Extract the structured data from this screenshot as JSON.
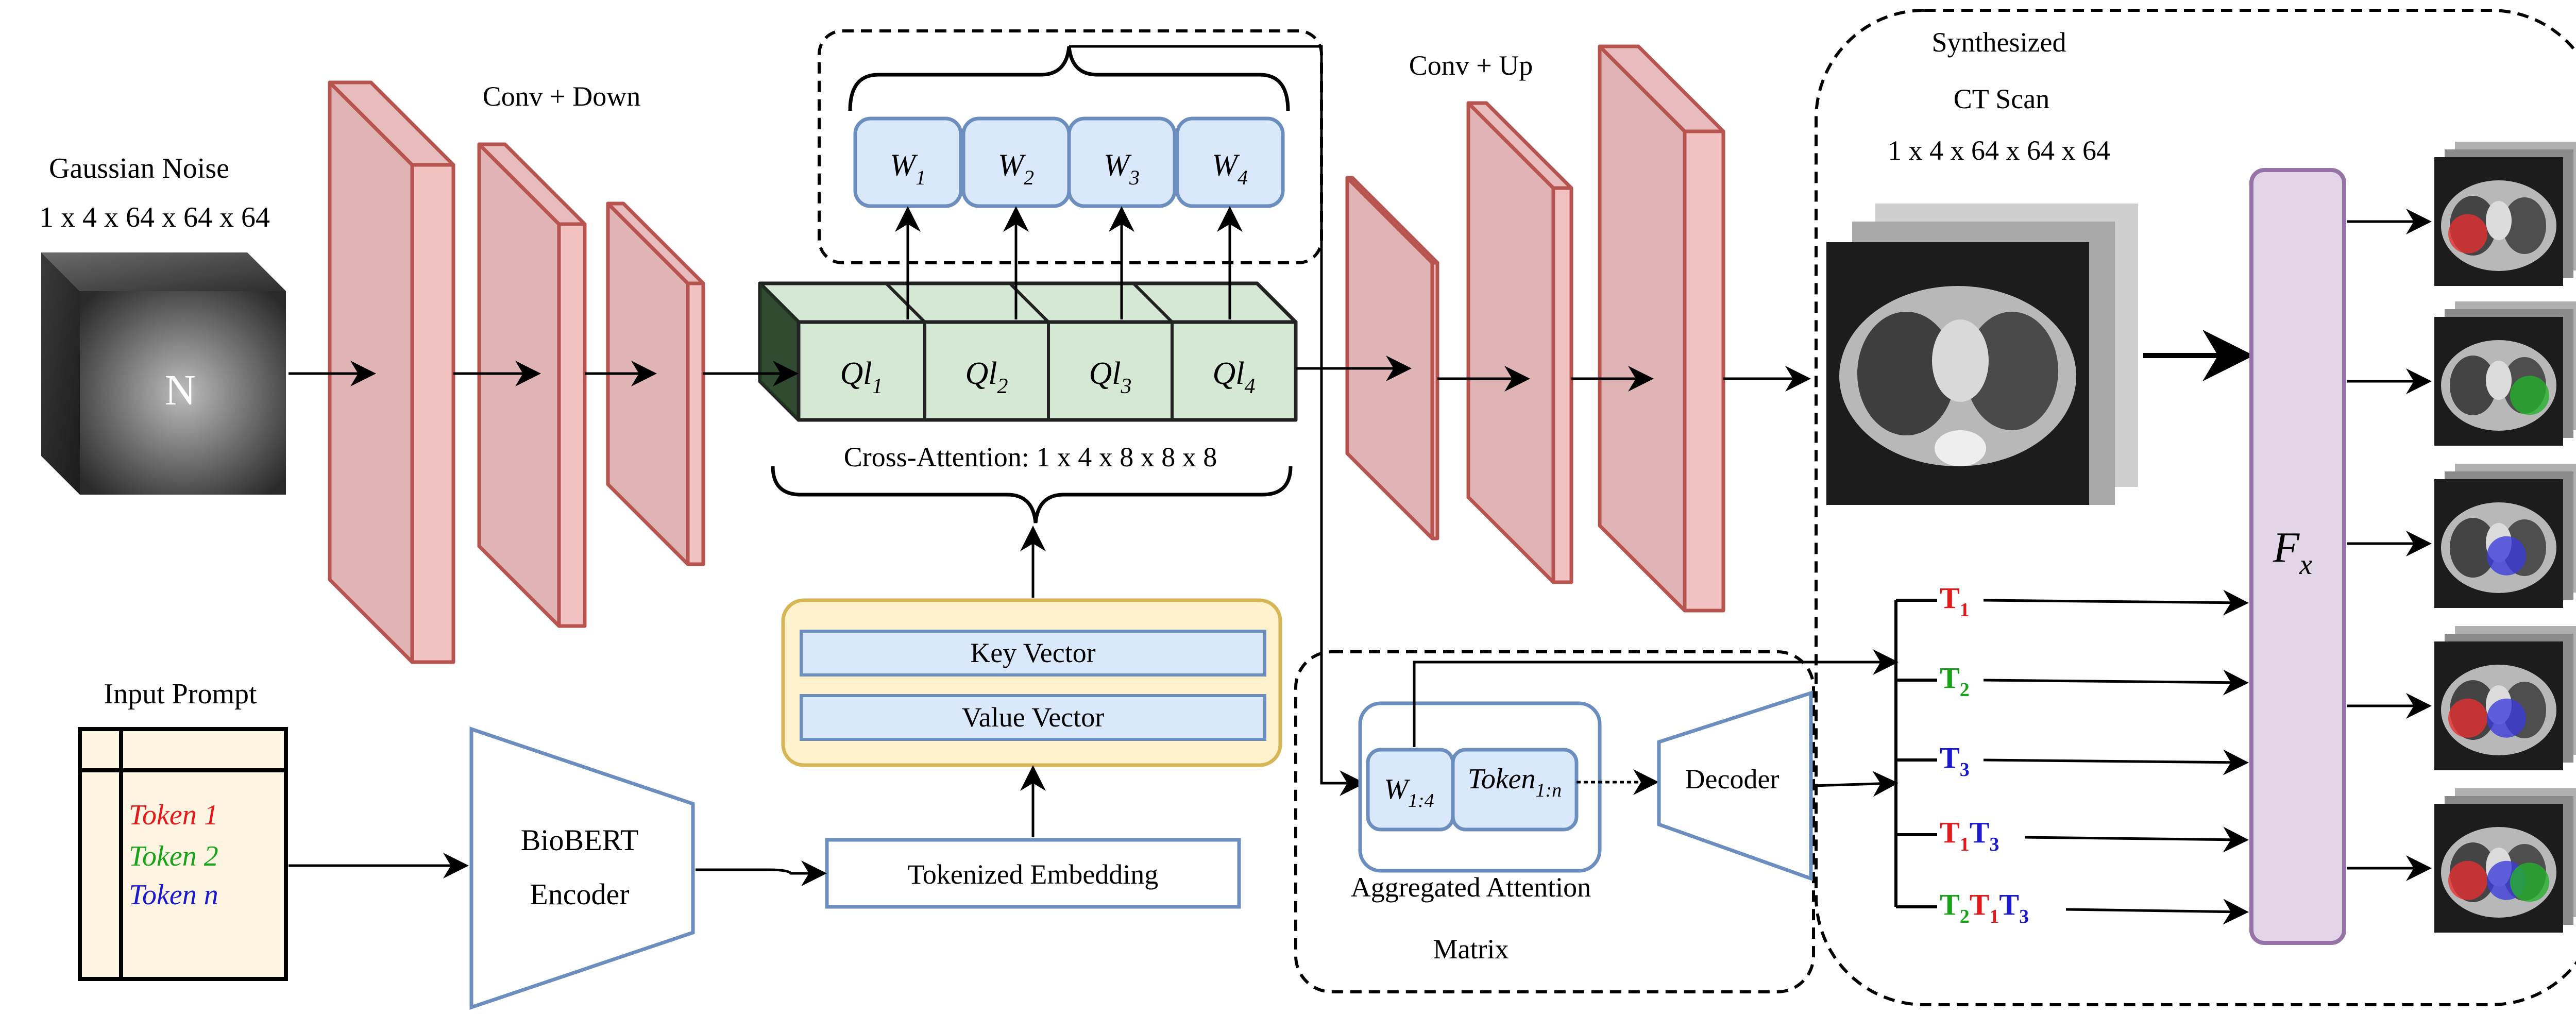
{
  "noise": {
    "title": "Gaussian Noise",
    "dims": "1 x 4 x 64 x 64 x 64",
    "cube_letter": "N"
  },
  "encoder_stage": {
    "label": "Conv + Down"
  },
  "decoder_stage": {
    "label": "Conv + Up"
  },
  "cross_attention": {
    "queries": [
      {
        "base": "Ql",
        "sub": "1"
      },
      {
        "base": "Ql",
        "sub": "2"
      },
      {
        "base": "Ql",
        "sub": "3"
      },
      {
        "base": "Ql",
        "sub": "4"
      }
    ],
    "weights": [
      {
        "base": "W",
        "sub": "1"
      },
      {
        "base": "W",
        "sub": "2"
      },
      {
        "base": "W",
        "sub": "3"
      },
      {
        "base": "W",
        "sub": "4"
      }
    ],
    "caption": "Cross-Attention: 1 x 4 x 8 x 8 x 8"
  },
  "kv": {
    "key_label": "Key Vector",
    "value_label": "Value Vector"
  },
  "prompt": {
    "title": "Input Prompt",
    "tokens": [
      {
        "text": "Token 1",
        "color": "#e31a1c"
      },
      {
        "text": "Token 2",
        "color": "#1aa31a"
      },
      {
        "text": "Token n",
        "color": "#1a1acc"
      }
    ]
  },
  "biobert": {
    "line1": "BioBERT",
    "line2": "Encoder"
  },
  "tokenized": {
    "label": "Tokenized Embedding"
  },
  "aggregated": {
    "w_base": "W",
    "w_sub": "1:4",
    "token_base": "Token",
    "token_sub": "1:n",
    "caption_line1": "Aggregated Attention",
    "caption_line2": "Matrix"
  },
  "decoder": {
    "label": "Decoder"
  },
  "synth": {
    "line1": "Synthesized",
    "line2": "CT Scan",
    "dims": "1 x 4 x 64 x 64 x 64"
  },
  "fx": {
    "base": "F",
    "sub": "x"
  },
  "text_queries": [
    [
      {
        "t": "T",
        "s": "1",
        "color": "#e31a1c"
      }
    ],
    [
      {
        "t": "T",
        "s": "2",
        "color": "#1aa31a"
      }
    ],
    [
      {
        "t": "T",
        "s": "3",
        "color": "#1a1acc"
      }
    ],
    [
      {
        "t": "T",
        "s": "1",
        "color": "#e31a1c"
      },
      {
        "t": "T",
        "s": "3",
        "color": "#1a1acc"
      }
    ],
    [
      {
        "t": "T",
        "s": "2",
        "color": "#1aa31a"
      },
      {
        "t": "T",
        "s": "1",
        "color": "#e31a1c"
      },
      {
        "t": "T",
        "s": "3",
        "color": "#1a1acc"
      }
    ]
  ],
  "mask_colors": {
    "red": "#e8302f",
    "green": "#22b22a",
    "blue": "#3b3bdc"
  },
  "outputs": [
    {
      "masks": [
        "red"
      ]
    },
    {
      "masks": [
        "green"
      ]
    },
    {
      "masks": [
        "blue"
      ]
    },
    {
      "masks": [
        "red",
        "blue"
      ]
    },
    {
      "masks": [
        "red",
        "blue",
        "green"
      ]
    }
  ],
  "colors": {
    "layer_fill": "#e0b4b4",
    "layer_side": "#f2c2c2",
    "layer_stroke": "#b85450",
    "attn_fill": "#d5e8d4",
    "attn_stroke": "#222222",
    "blue_fill": "#dae8fc",
    "blue_stroke": "#6c8ebf",
    "kv_fill": "#fff2cc",
    "kv_stroke": "#d6b656",
    "prompt_fill": "#fdf5e2",
    "fx_fill": "#e1d5e7",
    "fx_stroke": "#9673a6"
  }
}
